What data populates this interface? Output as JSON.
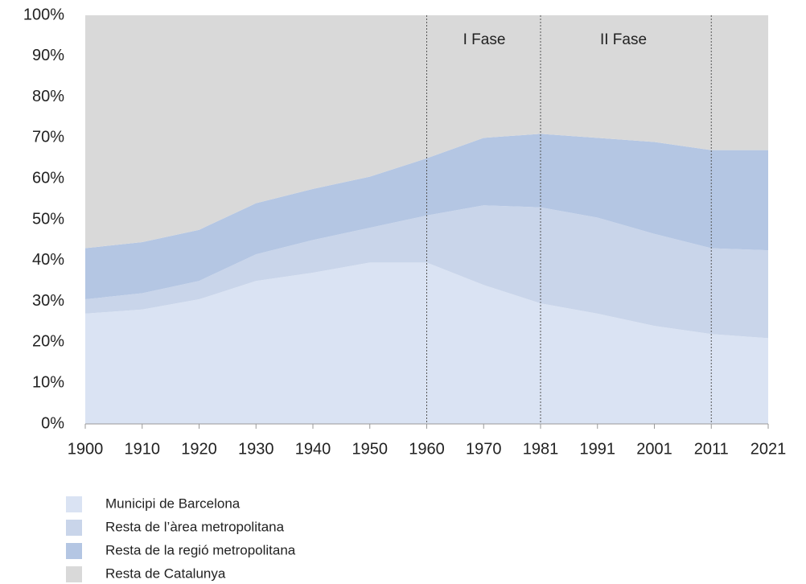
{
  "chart_data": {
    "type": "stacked_area",
    "categories": [
      "1900",
      "1910",
      "1920",
      "1930",
      "1940",
      "1950",
      "1960",
      "1970",
      "1981",
      "1991",
      "2001",
      "2011",
      "2021"
    ],
    "series": [
      {
        "name": "Municipi de Barcelona",
        "color": "#dae3f3",
        "values": [
          27,
          28,
          30.5,
          35,
          37,
          39.5,
          39.5,
          34,
          29.5,
          27,
          24,
          22,
          21
        ]
      },
      {
        "name": "Resta de l’àrea metropolitana",
        "color": "#c9d5ea",
        "values": [
          3.5,
          4,
          4.5,
          6.5,
          8,
          8.5,
          11.5,
          19.5,
          23.5,
          23.5,
          22.5,
          21,
          21.5
        ]
      },
      {
        "name": "Resta de la regió metropolitana",
        "color": "#b4c6e3",
        "values": [
          12.5,
          12.5,
          12.5,
          12.5,
          12.5,
          12.5,
          14,
          16.5,
          18,
          19.5,
          22.5,
          24,
          24.5
        ]
      },
      {
        "name": "Resta de Catalunya",
        "color": "#d9d9d9",
        "values": [
          57,
          55.5,
          52.5,
          46,
          42.5,
          39.5,
          35,
          30,
          29,
          30,
          31,
          33,
          33
        ]
      }
    ],
    "ylim": [
      0,
      100
    ],
    "yticks": [
      {
        "value": 0,
        "label": "0%"
      },
      {
        "value": 10,
        "label": "10%"
      },
      {
        "value": 20,
        "label": "20%"
      },
      {
        "value": 30,
        "label": "30%"
      },
      {
        "value": 40,
        "label": "40%"
      },
      {
        "value": 50,
        "label": "50%"
      },
      {
        "value": 60,
        "label": "60%"
      },
      {
        "value": 70,
        "label": "70%"
      },
      {
        "value": 80,
        "label": "80%"
      },
      {
        "value": 90,
        "label": "90%"
      },
      {
        "value": 100,
        "label": "100%"
      }
    ],
    "vlines": [
      "1960",
      "1981",
      "2011"
    ],
    "annotations": [
      "I Fase",
      "II Fase"
    ],
    "grid": false
  }
}
